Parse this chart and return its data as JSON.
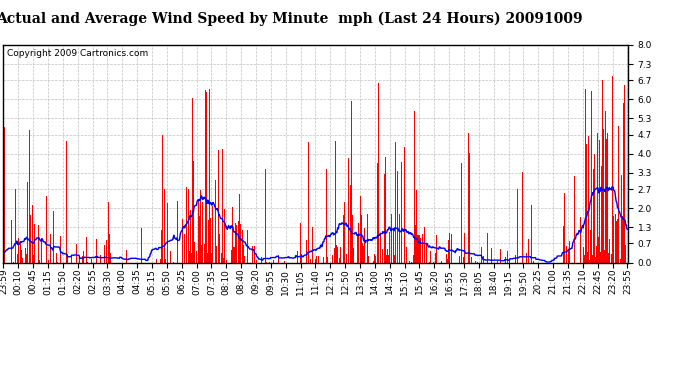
{
  "title": "Actual and Average Wind Speed by Minute  mph (Last 24 Hours) 20091009",
  "copyright": "Copyright 2009 Cartronics.com",
  "yticks": [
    0.0,
    0.7,
    1.3,
    2.0,
    2.7,
    3.3,
    4.0,
    4.7,
    5.3,
    6.0,
    6.7,
    7.3,
    8.0
  ],
  "ylim": [
    0.0,
    8.0
  ],
  "bar_color": "#ff0000",
  "line_color": "#0000ff",
  "bg_color": "#ffffff",
  "grid_color": "#c0c0c0",
  "title_fontsize": 10,
  "copyright_fontsize": 6.5,
  "tick_labelsize": 6.5,
  "x_labels": [
    "23:59",
    "00:10",
    "00:45",
    "01:15",
    "01:50",
    "02:20",
    "02:55",
    "03:30",
    "04:00",
    "04:35",
    "05:15",
    "05:50",
    "06:25",
    "07:00",
    "07:35",
    "08:10",
    "08:40",
    "09:20",
    "09:55",
    "10:30",
    "11:05",
    "11:40",
    "12:15",
    "12:50",
    "13:25",
    "14:00",
    "14:35",
    "15:10",
    "15:45",
    "16:20",
    "16:55",
    "17:30",
    "18:05",
    "18:40",
    "19:15",
    "19:50",
    "20:25",
    "21:00",
    "21:35",
    "22:10",
    "22:45",
    "23:20",
    "23:55"
  ]
}
